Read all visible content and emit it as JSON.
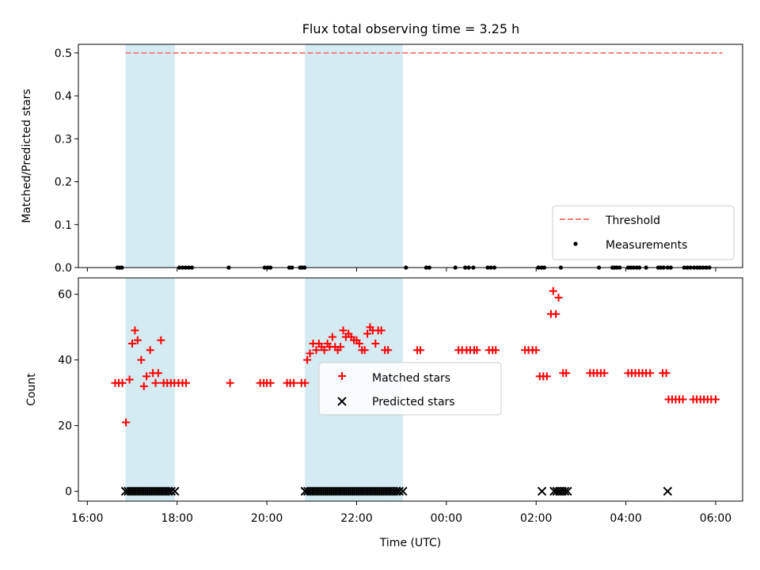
{
  "chart_data": [
    {
      "type": "scatter",
      "panel": "top",
      "title": "Flux total observing time = 3.25 h",
      "ylabel": "Matched/Predicted stars",
      "xlim": [
        -0.2,
        14.6
      ],
      "ylim": [
        0,
        0.52
      ],
      "yticks": [
        0,
        0.1,
        0.2,
        0.3,
        0.4,
        0.5
      ],
      "ytick_labels": [
        "0.0",
        "0.1",
        "0.2",
        "0.3",
        "0.4",
        "0.5"
      ],
      "xticks": [
        0,
        2,
        4,
        6,
        8,
        10,
        12,
        14
      ],
      "shaded_intervals": [
        [
          0.85,
          1.95
        ],
        [
          4.85,
          7.03
        ]
      ],
      "threshold": {
        "label": "Threshold",
        "value": 0.5,
        "x_range": [
          0.85,
          14.15
        ],
        "color": "#f08080"
      },
      "measurements": {
        "label": "Measurements",
        "x": [
          0.67,
          0.72,
          0.77,
          2.05,
          2.12,
          2.19,
          2.26,
          2.33,
          3.15,
          3.95,
          4.02,
          4.08,
          4.5,
          4.56,
          4.74,
          4.79,
          4.84,
          7.1,
          7.55,
          7.62,
          8.2,
          8.42,
          8.5,
          8.6,
          8.92,
          8.99,
          9.07,
          10.05,
          10.12,
          10.18,
          10.55,
          11.4,
          11.7,
          11.75,
          11.8,
          11.86,
          12.05,
          12.11,
          12.17,
          12.24,
          12.3,
          12.45,
          12.72,
          12.78,
          12.84,
          12.93,
          13.0,
          13.3,
          13.37,
          13.44,
          13.52,
          13.59,
          13.65,
          13.72,
          13.79,
          13.86
        ],
        "y_value": 0,
        "color": "#000000"
      },
      "legend": {
        "position": "lower right",
        "entries": [
          "Threshold",
          "Measurements"
        ]
      }
    },
    {
      "type": "scatter",
      "panel": "bottom",
      "xlabel": "Time (UTC)",
      "ylabel": "Count",
      "xlim": [
        -0.2,
        14.6
      ],
      "ylim": [
        -3,
        65
      ],
      "yticks": [
        0,
        20,
        40,
        60
      ],
      "ytick_labels": [
        "0",
        "20",
        "40",
        "60"
      ],
      "xticks": [
        0,
        2,
        4,
        6,
        8,
        10,
        12,
        14
      ],
      "xtick_labels": [
        "16:00",
        "18:00",
        "20:00",
        "22:00",
        "00:00",
        "02:00",
        "04:00",
        "06:00"
      ],
      "shaded_intervals": [
        [
          0.85,
          1.95
        ],
        [
          4.85,
          7.03
        ]
      ],
      "series": [
        {
          "name": "Matched stars",
          "marker": "+",
          "color": "#ff0000",
          "points": [
            [
              0.62,
              33
            ],
            [
              0.7,
              33
            ],
            [
              0.78,
              33
            ],
            [
              0.86,
              21
            ],
            [
              0.94,
              34
            ],
            [
              1.0,
              45
            ],
            [
              1.06,
              49
            ],
            [
              1.12,
              46
            ],
            [
              1.2,
              40
            ],
            [
              1.26,
              32
            ],
            [
              1.32,
              35
            ],
            [
              1.4,
              43
            ],
            [
              1.46,
              36
            ],
            [
              1.52,
              33
            ],
            [
              1.58,
              36
            ],
            [
              1.64,
              46
            ],
            [
              1.7,
              33
            ],
            [
              1.78,
              33
            ],
            [
              1.86,
              33
            ],
            [
              1.94,
              33
            ],
            [
              2.03,
              33
            ],
            [
              2.12,
              33
            ],
            [
              2.2,
              33
            ],
            [
              3.18,
              33
            ],
            [
              3.85,
              33
            ],
            [
              3.93,
              33
            ],
            [
              4.0,
              33
            ],
            [
              4.08,
              33
            ],
            [
              4.45,
              33
            ],
            [
              4.52,
              33
            ],
            [
              4.6,
              33
            ],
            [
              4.77,
              33
            ],
            [
              4.85,
              33
            ],
            [
              4.9,
              40
            ],
            [
              4.96,
              42
            ],
            [
              5.03,
              45
            ],
            [
              5.1,
              43
            ],
            [
              5.16,
              45
            ],
            [
              5.22,
              44
            ],
            [
              5.28,
              43
            ],
            [
              5.35,
              45
            ],
            [
              5.4,
              44
            ],
            [
              5.46,
              47
            ],
            [
              5.52,
              44
            ],
            [
              5.58,
              43
            ],
            [
              5.64,
              44
            ],
            [
              5.7,
              49
            ],
            [
              5.76,
              47
            ],
            [
              5.82,
              48
            ],
            [
              5.88,
              47
            ],
            [
              5.94,
              46
            ],
            [
              6.0,
              46
            ],
            [
              6.06,
              45
            ],
            [
              6.12,
              43
            ],
            [
              6.18,
              43
            ],
            [
              6.24,
              48
            ],
            [
              6.3,
              50
            ],
            [
              6.36,
              49
            ],
            [
              6.42,
              45
            ],
            [
              6.48,
              49
            ],
            [
              6.55,
              49
            ],
            [
              6.63,
              43
            ],
            [
              6.7,
              43
            ],
            [
              7.35,
              43
            ],
            [
              7.42,
              43
            ],
            [
              8.27,
              43
            ],
            [
              8.35,
              43
            ],
            [
              8.45,
              43
            ],
            [
              8.53,
              43
            ],
            [
              8.62,
              43
            ],
            [
              8.68,
              43
            ],
            [
              8.95,
              43
            ],
            [
              9.03,
              43
            ],
            [
              9.1,
              43
            ],
            [
              9.75,
              43
            ],
            [
              9.83,
              43
            ],
            [
              9.92,
              43
            ],
            [
              10.0,
              43
            ],
            [
              10.08,
              35
            ],
            [
              10.16,
              35
            ],
            [
              10.24,
              35
            ],
            [
              10.33,
              54
            ],
            [
              10.38,
              61
            ],
            [
              10.44,
              54
            ],
            [
              10.5,
              59
            ],
            [
              10.6,
              36
            ],
            [
              10.67,
              36
            ],
            [
              11.2,
              36
            ],
            [
              11.28,
              36
            ],
            [
              11.36,
              36
            ],
            [
              11.44,
              36
            ],
            [
              11.52,
              36
            ],
            [
              12.05,
              36
            ],
            [
              12.13,
              36
            ],
            [
              12.21,
              36
            ],
            [
              12.29,
              36
            ],
            [
              12.37,
              36
            ],
            [
              12.45,
              36
            ],
            [
              12.54,
              36
            ],
            [
              12.82,
              36
            ],
            [
              12.9,
              36
            ],
            [
              12.95,
              28
            ],
            [
              13.03,
              28
            ],
            [
              13.11,
              28
            ],
            [
              13.19,
              28
            ],
            [
              13.27,
              28
            ],
            [
              13.5,
              28
            ],
            [
              13.58,
              28
            ],
            [
              13.66,
              28
            ],
            [
              13.74,
              28
            ],
            [
              13.82,
              28
            ],
            [
              13.9,
              28
            ],
            [
              14.0,
              28
            ]
          ]
        },
        {
          "name": "Predicted stars",
          "marker": "x",
          "color": "#000000",
          "y_value": 0,
          "x": [
            0.85,
            0.91,
            0.97,
            1.03,
            1.09,
            1.15,
            1.21,
            1.27,
            1.33,
            1.39,
            1.45,
            1.51,
            1.57,
            1.63,
            1.69,
            1.75,
            1.81,
            1.87,
            1.95,
            4.85,
            4.91,
            4.97,
            5.03,
            5.09,
            5.15,
            5.21,
            5.27,
            5.33,
            5.39,
            5.45,
            5.51,
            5.57,
            5.63,
            5.69,
            5.75,
            5.81,
            5.87,
            5.93,
            5.99,
            6.05,
            6.11,
            6.17,
            6.23,
            6.29,
            6.35,
            6.41,
            6.47,
            6.53,
            6.59,
            6.65,
            6.71,
            6.77,
            6.83,
            6.89,
            6.95,
            7.03,
            10.13,
            10.4,
            10.46,
            10.52,
            10.58,
            10.64,
            10.7,
            12.93
          ]
        }
      ],
      "legend": {
        "position": "center",
        "entries": [
          "Matched stars",
          "Predicted stars"
        ]
      }
    }
  ]
}
